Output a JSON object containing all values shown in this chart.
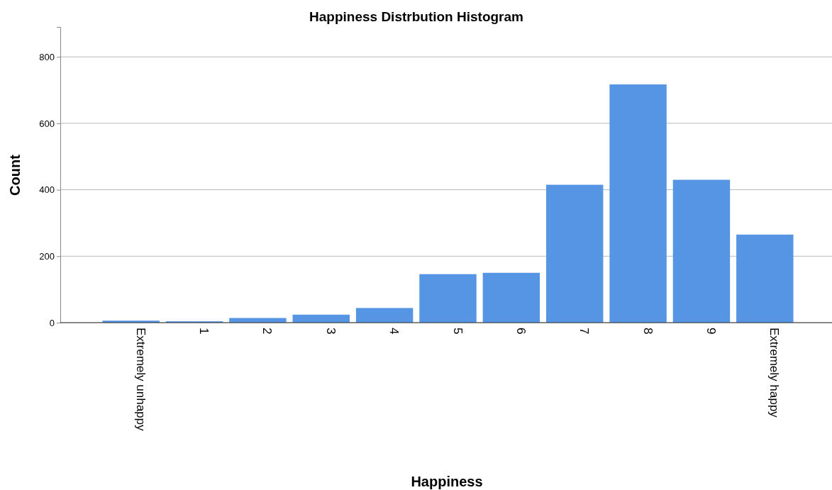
{
  "chart_data": {
    "type": "bar",
    "title": "Happiness Distrbution Histogram",
    "xlabel": "Happiness",
    "ylabel": "Count",
    "categories": [
      "Extremely unhappy",
      "1",
      "2",
      "3",
      "4",
      "5",
      "6",
      "7",
      "8",
      "9",
      "Extremely happy"
    ],
    "values": [
      6,
      4,
      14,
      24,
      44,
      146,
      150,
      415,
      717,
      430,
      265
    ],
    "color": "#5595e4",
    "ylim": [
      0,
      890
    ],
    "yticks": [
      0,
      200,
      400,
      600,
      800
    ],
    "grid": "y"
  }
}
